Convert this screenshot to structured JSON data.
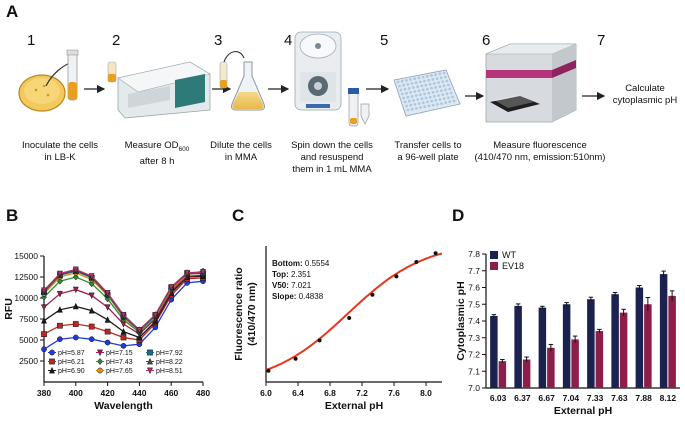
{
  "panels": {
    "a": "A",
    "b": "B",
    "c": "C",
    "d": "D"
  },
  "workflow": {
    "steps": [
      {
        "num": "1",
        "caption": [
          "Inoculate the cells",
          "in LB-K"
        ]
      },
      {
        "num": "2",
        "caption": [
          "Measure OD",
          "600",
          "after 8 h"
        ]
      },
      {
        "num": "3",
        "caption": [
          "Dilute the cells",
          "in MMA"
        ]
      },
      {
        "num": "4",
        "caption": [
          "Spin down the cells",
          "and resuspend",
          "them in 1 mL MMA"
        ]
      },
      {
        "num": "5",
        "caption": [
          "Transfer cells to",
          "a 96-well plate"
        ]
      },
      {
        "num": "6",
        "caption": [
          "Measure fluorescence",
          "(410/470 nm, emission:510nm)"
        ]
      },
      {
        "num": "7",
        "caption": [
          "Calculate",
          "cytoplasmic pH"
        ]
      }
    ],
    "icons": [
      "petri-dish-icon",
      "spectrophotometer-icon",
      "flask-icon",
      "centrifuge-icon",
      "well-plate-icon",
      "plate-reader-icon"
    ]
  },
  "chart_data": [
    {
      "type": "line",
      "panel": "B",
      "xlabel": "Wavelength",
      "ylabel": "RFU",
      "xlim": [
        380,
        480
      ],
      "ylim": [
        0,
        15000
      ],
      "xticks": [
        "380",
        "400",
        "420",
        "440",
        "460",
        "480"
      ],
      "yticks": [
        "2500",
        "5000",
        "7500",
        "10000",
        "12500",
        "15000"
      ],
      "x": [
        380,
        390,
        400,
        410,
        420,
        430,
        440,
        450,
        460,
        470,
        480
      ],
      "series": [
        {
          "name": "pH=5.87",
          "color": "#1f3bd6",
          "marker": "circle",
          "values": [
            3900,
            5100,
            5300,
            5100,
            4700,
            4300,
            4500,
            6500,
            9800,
            11800,
            12000
          ]
        },
        {
          "name": "pH=6.21",
          "color": "#c0281f",
          "marker": "square",
          "values": [
            5700,
            6700,
            6900,
            6600,
            6000,
            5300,
            5000,
            7000,
            10300,
            12300,
            12400
          ]
        },
        {
          "name": "pH=6.90",
          "color": "#1a1a1a",
          "marker": "triangle",
          "values": [
            7300,
            8600,
            9000,
            8500,
            7400,
            6000,
            5300,
            7200,
            10600,
            12500,
            12600
          ]
        },
        {
          "name": "pH=7.15",
          "color": "#a02050",
          "marker": "triangle-down",
          "values": [
            8900,
            10500,
            11000,
            10300,
            8900,
            6900,
            5700,
            7500,
            10800,
            12600,
            12700
          ]
        },
        {
          "name": "pH=7.43",
          "color": "#2e8a2e",
          "marker": "diamond",
          "values": [
            10100,
            12000,
            12500,
            11700,
            9900,
            7400,
            5900,
            7700,
            11000,
            12800,
            13200
          ]
        },
        {
          "name": "pH=7.65",
          "color": "#e08a1a",
          "marker": "circle",
          "values": [
            10500,
            12500,
            13000,
            12200,
            10300,
            7700,
            6000,
            7800,
            11100,
            12800,
            13000
          ]
        },
        {
          "name": "pH=7.92",
          "color": "#1a6a8a",
          "marker": "square",
          "values": [
            10700,
            12700,
            13200,
            12400,
            10400,
            7800,
            6100,
            7900,
            11200,
            12900,
            12900
          ]
        },
        {
          "name": "pH=8.22",
          "color": "#4a4a4a",
          "marker": "triangle",
          "values": [
            10800,
            12800,
            13300,
            12500,
            10500,
            7900,
            6200,
            8000,
            11300,
            13000,
            13000
          ]
        },
        {
          "name": "pH=8.51",
          "color": "#b0306a",
          "marker": "triangle-down",
          "values": [
            10900,
            12900,
            13400,
            12600,
            10600,
            8000,
            6200,
            8000,
            11300,
            13000,
            13100
          ]
        }
      ]
    },
    {
      "type": "scatter",
      "panel": "C",
      "xlabel": "External pH",
      "ylabel": [
        "Fluorescence ratio",
        "(410/470 nm)"
      ],
      "xlim": [
        6.0,
        8.2
      ],
      "ylim": [
        0.6,
        2.3
      ],
      "xticks": [
        "6.0",
        "6.4",
        "6.8",
        "7.2",
        "7.6",
        "8.0"
      ],
      "points": {
        "x": [
          6.03,
          6.37,
          6.67,
          7.04,
          7.33,
          7.63,
          7.88,
          8.12
        ],
        "y": [
          0.74,
          0.89,
          1.12,
          1.4,
          1.69,
          1.92,
          2.1,
          2.21
        ]
      },
      "fit": {
        "bottom": 0.5554,
        "top": 2.351,
        "v50": 7.021,
        "slope": 0.4838,
        "color": "#e8361c"
      },
      "annotations": [
        {
          "label": "Bottom:",
          "value": "0.5554"
        },
        {
          "label": "Top:",
          "value": "2.351"
        },
        {
          "label": "V50:",
          "value": "7.021"
        },
        {
          "label": "Slope:",
          "value": "0.4838"
        }
      ]
    },
    {
      "type": "bar",
      "panel": "D",
      "xlabel": "External pH",
      "ylabel": "Cytoplasmic pH",
      "ylim": [
        7.0,
        7.8
      ],
      "yticks": [
        "7.0",
        "7.1",
        "7.2",
        "7.3",
        "7.4",
        "7.5",
        "7.6",
        "7.7",
        "7.8"
      ],
      "categories": [
        "6.03",
        "6.37",
        "6.67",
        "7.04",
        "7.33",
        "7.63",
        "7.88",
        "8.12"
      ],
      "series": [
        {
          "name": "WT",
          "color": "#1b2250",
          "values": [
            7.43,
            7.49,
            7.48,
            7.5,
            7.53,
            7.56,
            7.6,
            7.68
          ],
          "errors": [
            0.008,
            0.012,
            0.008,
            0.01,
            0.012,
            0.01,
            0.012,
            0.018
          ]
        },
        {
          "name": "EV18",
          "color": "#8c1e4a",
          "values": [
            7.16,
            7.17,
            7.24,
            7.29,
            7.34,
            7.45,
            7.5,
            7.55
          ],
          "errors": [
            0.01,
            0.015,
            0.02,
            0.02,
            0.01,
            0.02,
            0.04,
            0.03
          ]
        }
      ]
    }
  ]
}
